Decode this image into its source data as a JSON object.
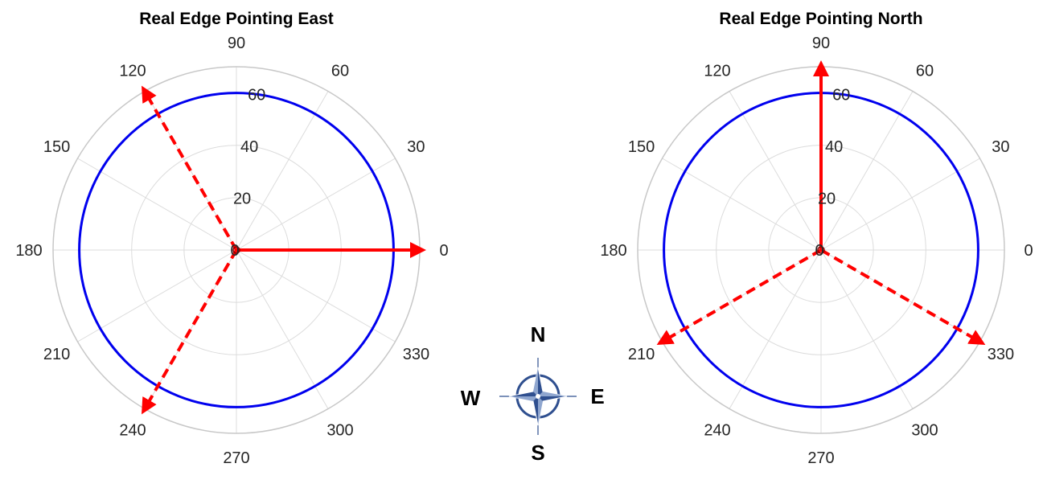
{
  "colors": {
    "circle": "#0000ee",
    "arrow": "#ff0000",
    "grid": "#dcdcdc",
    "outer_ring": "#c8c8c8",
    "compass_fill": "#2f4f8f"
  },
  "compass": {
    "north": "N",
    "south": "S",
    "east": "E",
    "west": "W"
  },
  "chart_data": [
    {
      "type": "polar",
      "title": "Real Edge Pointing East",
      "theta_ticks": [
        "0",
        "30",
        "60",
        "90",
        "120",
        "150",
        "180",
        "210",
        "240",
        "270",
        "300",
        "330"
      ],
      "r_ticks": [
        "0",
        "20",
        "40",
        "60"
      ],
      "rlim": [
        0,
        70
      ],
      "grid": true,
      "series": [
        {
          "style": "solid-circle",
          "color": "#0000ee",
          "r": 60
        },
        {
          "style": "solid-arrow",
          "color": "#ff0000",
          "theta": 0,
          "r": 70
        },
        {
          "style": "dashed-arrow",
          "color": "#ff0000",
          "theta": 120,
          "r": 70
        },
        {
          "style": "dashed-arrow",
          "color": "#ff0000",
          "theta": 240,
          "r": 70
        }
      ]
    },
    {
      "type": "polar",
      "title": "Real Edge Pointing North",
      "theta_ticks": [
        "0",
        "30",
        "60",
        "90",
        "120",
        "150",
        "180",
        "210",
        "240",
        "270",
        "300",
        "330"
      ],
      "r_ticks": [
        "0",
        "20",
        "40",
        "60"
      ],
      "rlim": [
        0,
        70
      ],
      "grid": true,
      "series": [
        {
          "style": "solid-circle",
          "color": "#0000ee",
          "r": 60
        },
        {
          "style": "solid-arrow",
          "color": "#ff0000",
          "theta": 90,
          "r": 70
        },
        {
          "style": "dashed-arrow",
          "color": "#ff0000",
          "theta": 210,
          "r": 70
        },
        {
          "style": "dashed-arrow",
          "color": "#ff0000",
          "theta": 330,
          "r": 70
        }
      ]
    }
  ]
}
